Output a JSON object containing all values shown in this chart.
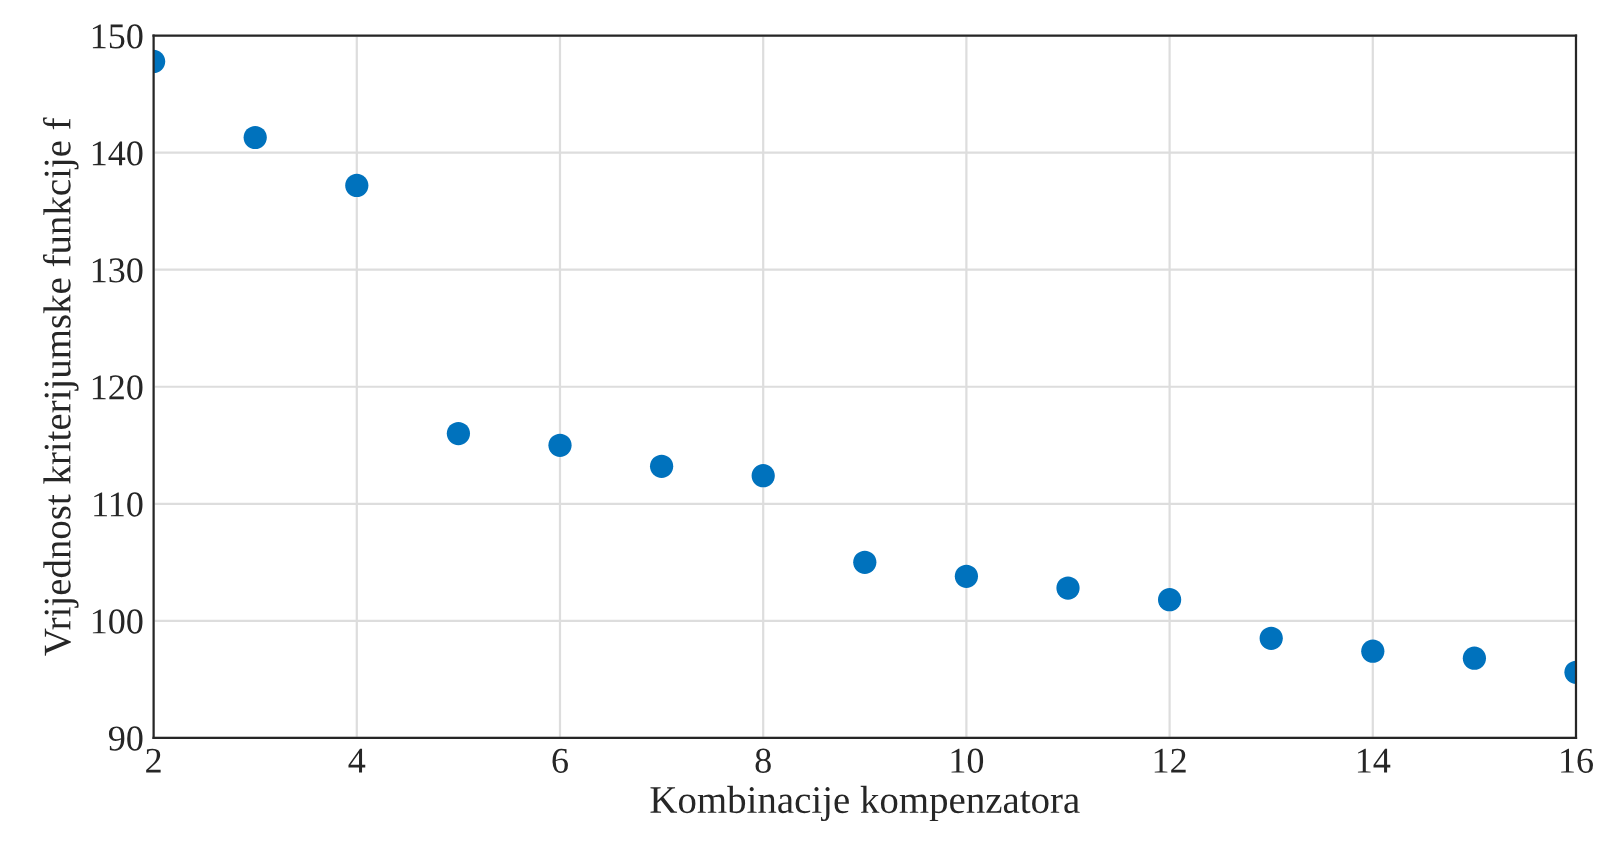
{
  "chart_data": {
    "type": "scatter",
    "xlabel": "Kombinacije kompenzatora",
    "ylabel": "Vrijednost kriterijumske funkcije f",
    "x": [
      2,
      3,
      4,
      5,
      6,
      7,
      8,
      9,
      10,
      11,
      12,
      13,
      14,
      15,
      16
    ],
    "series": [
      {
        "color": "#0072bd",
        "values": [
          147.8,
          141.3,
          137.2,
          116.0,
          115.0,
          113.2,
          112.4,
          105.0,
          103.8,
          102.8,
          101.8,
          98.5,
          97.4,
          96.8,
          95.6
        ]
      }
    ],
    "xlim": [
      2,
      16
    ],
    "xticks": [
      2,
      4,
      6,
      8,
      10,
      12,
      14,
      16
    ],
    "ylim": [
      90,
      150
    ],
    "yticks": [
      90,
      100,
      110,
      120,
      130,
      140,
      150
    ],
    "grid": true,
    "marker": "circle"
  }
}
